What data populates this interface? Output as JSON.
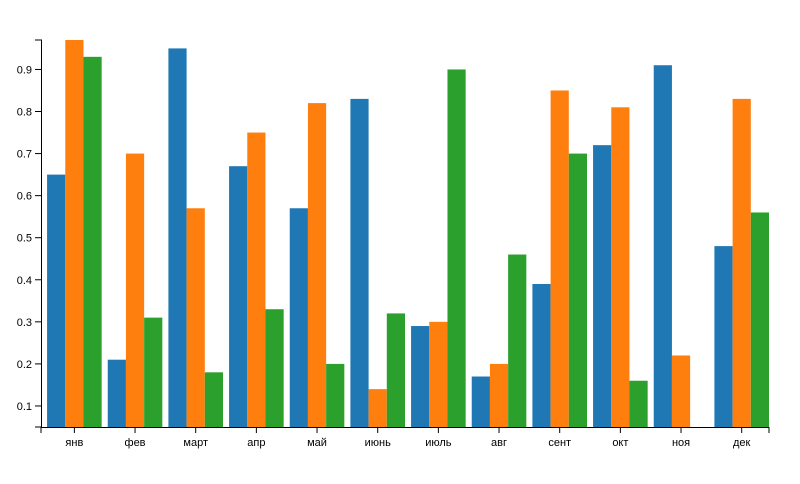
{
  "chart_data": {
    "type": "bar",
    "categories": [
      "янв",
      "фев",
      "март",
      "апр",
      "май",
      "июнь",
      "июль",
      "авг",
      "сент",
      "окт",
      "ноя",
      "дек"
    ],
    "series": [
      {
        "color": "#1f77b4",
        "values": [
          0.65,
          0.21,
          0.95,
          0.67,
          0.57,
          0.83,
          0.29,
          0.17,
          0.39,
          0.72,
          0.91,
          0.48
        ]
      },
      {
        "color": "#ff7f0e",
        "values": [
          0.97,
          0.7,
          0.57,
          0.75,
          0.82,
          0.14,
          0.3,
          0.2,
          0.85,
          0.81,
          0.22,
          0.83
        ]
      },
      {
        "color": "#2ca02c",
        "values": [
          0.93,
          0.31,
          0.18,
          0.33,
          0.2,
          0.32,
          0.9,
          0.46,
          0.7,
          0.16,
          0.05,
          0.56
        ]
      }
    ],
    "ylim": [
      0.05,
      0.97
    ],
    "yticks": [
      "0.1",
      "0.2",
      "0.3",
      "0.4",
      "0.5",
      "0.6",
      "0.7",
      "0.8",
      "0.9"
    ],
    "title": "",
    "xlabel": "",
    "ylabel": "",
    "grid": false,
    "legend": "none"
  }
}
